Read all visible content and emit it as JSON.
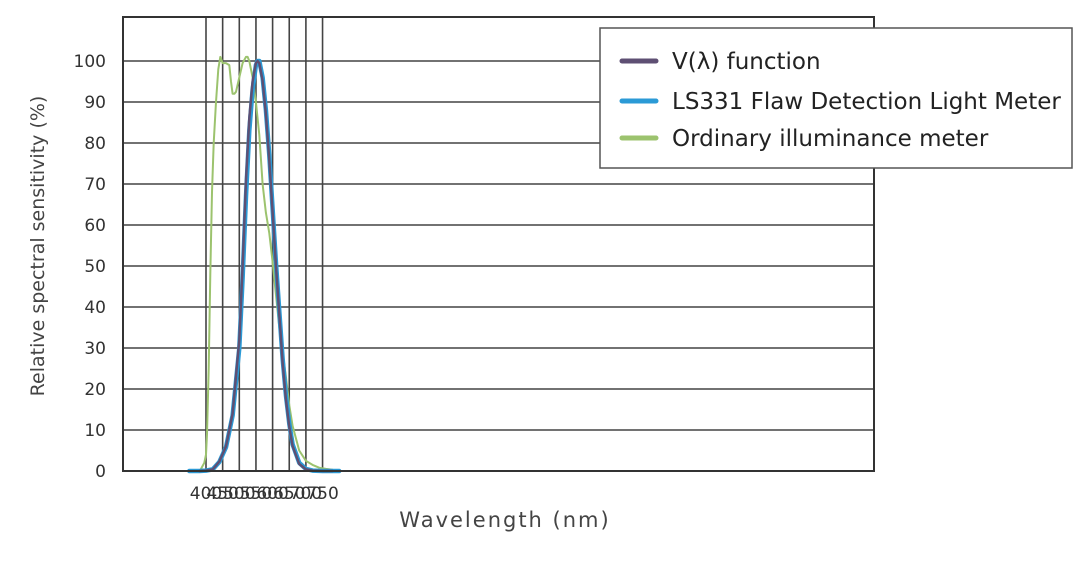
{
  "chart_data": {
    "type": "line",
    "title": "",
    "xlabel": "Wavelength (nm)",
    "ylabel": "Relative spectral sensitivity (%)",
    "xlim": [
      350,
      800
    ],
    "ylim": [
      0,
      100
    ],
    "xticks": [
      400,
      450,
      500,
      550,
      600,
      650,
      700,
      750
    ],
    "yticks": [
      0,
      10,
      20,
      30,
      40,
      50,
      60,
      70,
      80,
      90,
      100
    ],
    "grid": true,
    "legend_position": "top-right",
    "series": [
      {
        "name": "V(λ) function",
        "color": "#5e4f73",
        "x": [
          380,
          400,
          420,
          440,
          460,
          480,
          500,
          510,
          520,
          530,
          540,
          550,
          555,
          560,
          570,
          580,
          590,
          600,
          610,
          620,
          630,
          640,
          650,
          660,
          680,
          700,
          720,
          750,
          780
        ],
        "y": [
          0,
          0.1,
          0.4,
          2.3,
          6,
          14,
          32,
          50,
          71,
          86,
          95,
          99.5,
          100,
          99.5,
          95.2,
          87,
          75.7,
          63.1,
          50.3,
          38.1,
          26.5,
          17.5,
          10.7,
          6.1,
          1.7,
          0.4,
          0.1,
          0,
          0
        ]
      },
      {
        "name": "LS331 Flaw Detection Light Meter",
        "color": "#2b9ad6",
        "x": [
          350,
          380,
          400,
          420,
          440,
          460,
          480,
          500,
          510,
          520,
          530,
          540,
          550,
          555,
          560,
          570,
          580,
          590,
          600,
          610,
          620,
          630,
          640,
          650,
          660,
          680,
          700,
          720,
          750,
          780,
          800
        ],
        "y": [
          0,
          0,
          0.1,
          0.4,
          2.2,
          5.8,
          13.5,
          30,
          47,
          67,
          83,
          93,
          99,
          100,
          100,
          96,
          88,
          77,
          64,
          51,
          39,
          27.5,
          18.5,
          11.5,
          6.5,
          2,
          0.5,
          0.1,
          0,
          0,
          0
        ]
      },
      {
        "name": "Ordinary illuminance meter",
        "color": "#9cc36e",
        "x": [
          385,
          395,
          400,
          403,
          408,
          413,
          418,
          423,
          430,
          437,
          443,
          450,
          460,
          470,
          475,
          480,
          485,
          490,
          500,
          510,
          520,
          525,
          530,
          540,
          550,
          560,
          570,
          580,
          590,
          600,
          620,
          640,
          650,
          660,
          680,
          700,
          720,
          740,
          760,
          780
        ],
        "y": [
          0.5,
          2,
          4,
          9,
          25,
          48,
          68,
          80,
          90,
          98,
          101,
          99.5,
          99.5,
          99,
          95,
          92,
          92,
          92.5,
          96,
          99.5,
          101,
          101,
          100,
          96,
          90,
          82,
          70,
          63,
          58,
          51,
          35,
          23,
          16,
          11,
          5,
          2.5,
          1.5,
          0.8,
          0.5,
          0.3
        ]
      }
    ]
  }
}
